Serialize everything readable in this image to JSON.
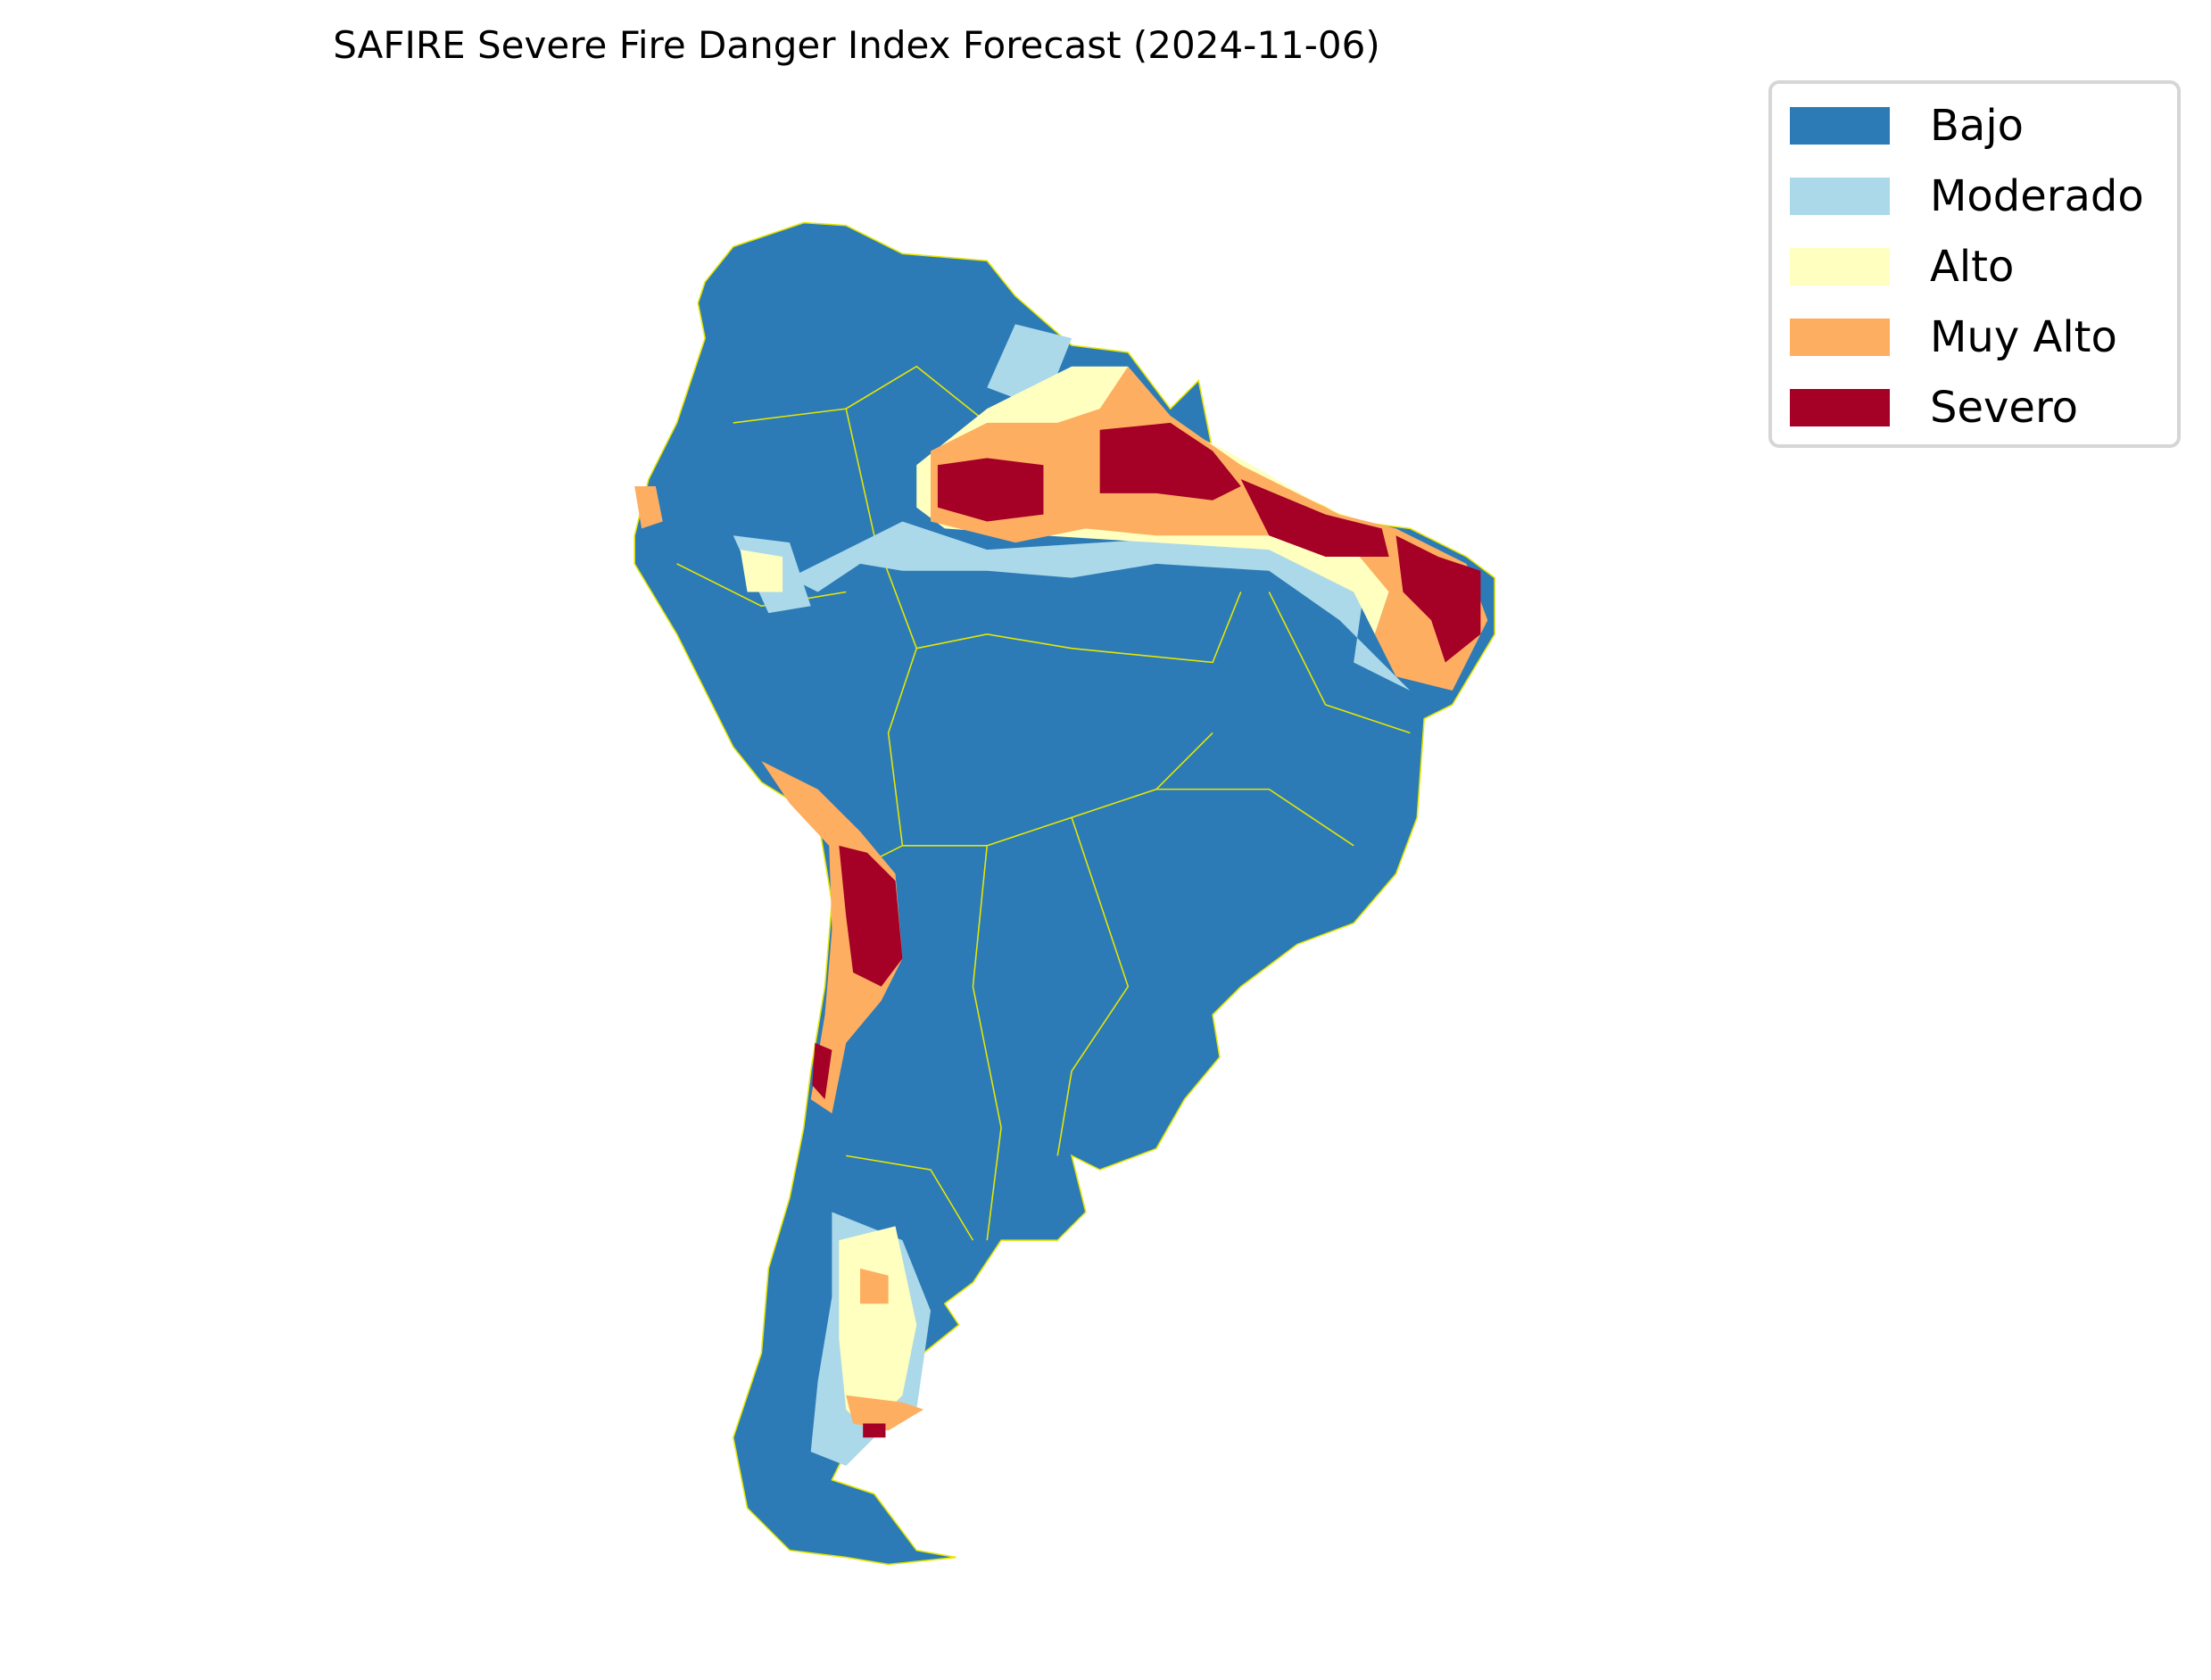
{
  "title": "SAFIRE Severe Fire Danger Index Forecast (2024-11-06)",
  "chart_data": {
    "type": "heatmap",
    "title": "SAFIRE Severe Fire Danger Index Forecast (2024-11-06)",
    "region": "South America",
    "date": "2024-11-06",
    "legend_placement": "top-right",
    "categories": [
      "Bajo",
      "Moderado",
      "Alto",
      "Muy Alto",
      "Severo"
    ],
    "colors": [
      "#2c7bb6",
      "#abd9e9",
      "#ffffbf",
      "#fdae61",
      "#a50026"
    ],
    "boundary_color": "#e6e600"
  },
  "legend": {
    "items": [
      {
        "label": "Bajo",
        "color": "#2c7bb6"
      },
      {
        "label": "Moderado",
        "color": "#abd9e9"
      },
      {
        "label": "Alto",
        "color": "#ffffbf"
      },
      {
        "label": "Muy Alto",
        "color": "#fdae61"
      },
      {
        "label": "Severo",
        "color": "#a50026"
      }
    ]
  }
}
